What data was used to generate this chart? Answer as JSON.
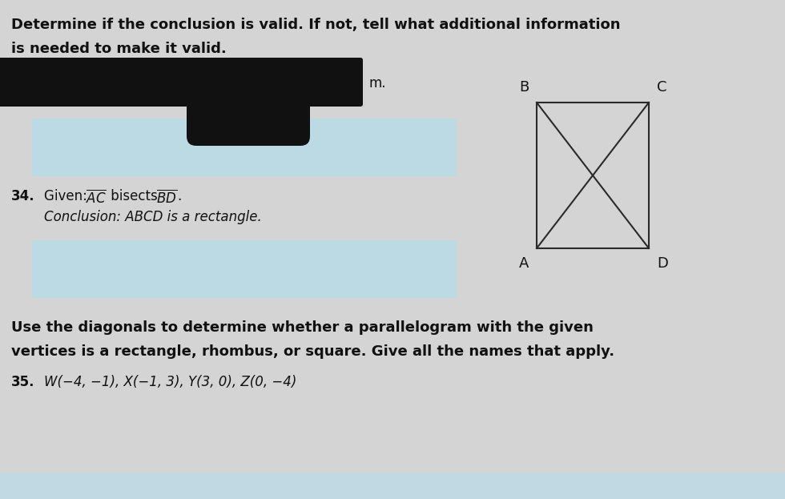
{
  "bg_color": "#d8d8d8",
  "text_color": "#111111",
  "title_line1": "Determine if the conclusion is valid. If not, tell what additional information",
  "title_line2": "is needed to make it valid.",
  "redacted_text": "m.",
  "item34_label": "34.",
  "item34_given_prefix": "Given: ",
  "item34_given_ac": "AC",
  "item34_given_mid": " bisects ",
  "item34_given_bd": "BD",
  "item34_given_suffix": ".",
  "item34_conclusion": "Conclusion: ABCD is a rectangle.",
  "section_header1": "Use the diagonals to determine whether a parallelogram with the given",
  "section_header2": "vertices is a rectangle, rhombus, or square. Give all the names that apply.",
  "item35_label": "35.",
  "item35_text": "W(−4, −1), X(−1, 3), Y(3, 0), Z(0, −4)",
  "blue_color": "#b8dce8",
  "square_color": "#2a2a2a",
  "font_size_title": 13,
  "font_size_body": 12,
  "font_size_diagram": 13
}
